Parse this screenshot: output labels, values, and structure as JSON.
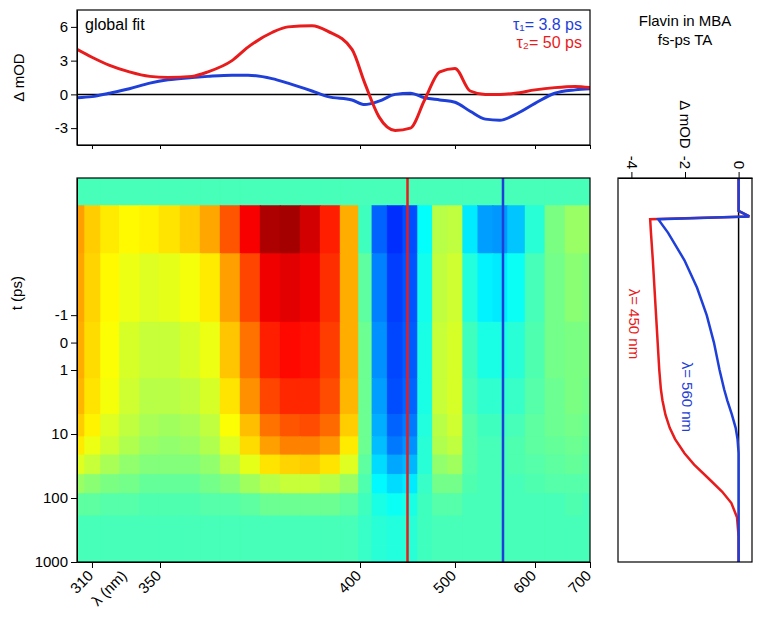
{
  "chart_data": [
    {
      "type": "line",
      "title": "global fit",
      "ylabel": "Δ mOD",
      "x": [
        300,
        310,
        320,
        332,
        344,
        352,
        358,
        362,
        368,
        372,
        378,
        382,
        388,
        392,
        398,
        405,
        420,
        437,
        453,
        468,
        484,
        500,
        519,
        538,
        556,
        575,
        600,
        636,
        673,
        700
      ],
      "xlim": [
        300,
        700
      ],
      "xticks": [
        310,
        350,
        400,
        500,
        600,
        700
      ],
      "ylim": [
        -4.5,
        7.5
      ],
      "yticks": [
        -3,
        0,
        3,
        6
      ],
      "tick_labels": "y",
      "legend": "upper right",
      "series": [
        {
          "name": "τ₁= 3.8 ps",
          "color": "#1f3fd9",
          "values": [
            -0.3,
            -0.2,
            0.1,
            0.5,
            1.0,
            1.3,
            1.5,
            1.6,
            1.7,
            1.7,
            1.4,
            1.0,
            0.3,
            -0.2,
            -0.5,
            -0.9,
            -0.6,
            0.0,
            0.1,
            -0.3,
            -0.5,
            -0.7,
            -1.5,
            -2.2,
            -2.3,
            -1.8,
            -0.8,
            0.1,
            0.4,
            0.5
          ]
        },
        {
          "name": "τ₂= 50 ps",
          "color": "#e81c1c",
          "values": [
            4.0,
            3.3,
            2.6,
            2.0,
            1.6,
            1.5,
            1.6,
            2.0,
            3.0,
            4.2,
            5.5,
            6.0,
            6.1,
            5.6,
            4.0,
            1.0,
            -2.0,
            -3.2,
            -3.0,
            -0.5,
            2.0,
            2.3,
            0.3,
            0.0,
            0.0,
            0.1,
            0.4,
            0.6,
            0.7,
            0.6
          ]
        }
      ]
    },
    {
      "type": "heatmap",
      "xlabel": "λ (nm)",
      "ylabel": "t (ps)",
      "x": [
        300,
        310,
        320,
        332,
        344,
        352,
        358,
        362,
        368,
        372,
        378,
        382,
        388,
        392,
        398,
        405,
        420,
        437,
        453,
        468,
        484,
        500,
        519,
        538,
        556,
        575,
        600,
        636,
        673,
        700
      ],
      "y": [
        -5.5,
        -4.5,
        -2,
        0.5,
        3,
        8,
        15,
        30,
        60,
        120,
        300,
        1000
      ],
      "xlim": [
        300,
        700
      ],
      "xticks": [
        310,
        350,
        400,
        500,
        600,
        700
      ],
      "ylim": [
        -6,
        1000
      ],
      "yticks": [
        -1,
        0,
        1,
        10,
        100,
        1000
      ],
      "zlim": [
        -6,
        7.5
      ],
      "values": [
        [
          0,
          0,
          0,
          0,
          0,
          0,
          0,
          0,
          0,
          0,
          0,
          0,
          0,
          0,
          0,
          0,
          0,
          0,
          0,
          0,
          0,
          0,
          0,
          0,
          0,
          0,
          0,
          0,
          0,
          0
        ],
        [
          3.7,
          3.1,
          2.7,
          2.5,
          2.6,
          2.8,
          3.1,
          3.6,
          4.7,
          5.9,
          6.9,
          7.0,
          6.4,
          5.4,
          3.5,
          -0.1,
          -3.0,
          -3.7,
          -3.3,
          -0.9,
          1.5,
          1.6,
          -1.2,
          -2.2,
          -2.3,
          -1.7,
          -0.4,
          0.7,
          1.1,
          1.1
        ],
        [
          3.6,
          3.0,
          2.5,
          2.2,
          2.0,
          2.1,
          2.3,
          2.7,
          3.7,
          4.9,
          6.0,
          6.2,
          6.0,
          5.2,
          3.5,
          0.3,
          -2.6,
          -3.5,
          -3.2,
          -0.7,
          1.6,
          1.8,
          -0.5,
          -1.1,
          -1.2,
          -0.8,
          0.0,
          0.6,
          0.9,
          0.8
        ],
        [
          3.5,
          2.9,
          2.4,
          1.9,
          1.7,
          1.7,
          1.9,
          2.2,
          3.2,
          4.3,
          5.4,
          5.7,
          5.6,
          5.0,
          3.5,
          0.5,
          -2.4,
          -3.4,
          -3.1,
          -0.6,
          1.7,
          1.9,
          -0.1,
          -0.6,
          -0.6,
          -0.4,
          0.1,
          0.6,
          0.7,
          0.7
        ],
        [
          3.4,
          2.8,
          2.3,
          1.8,
          1.5,
          1.5,
          1.6,
          1.9,
          2.8,
          3.9,
          4.9,
          5.3,
          5.3,
          4.8,
          3.4,
          0.5,
          -2.2,
          -3.3,
          -3.0,
          -0.6,
          1.7,
          1.9,
          0.0,
          -0.3,
          -0.3,
          -0.2,
          0.2,
          0.5,
          0.7,
          0.6
        ],
        [
          3.1,
          2.6,
          2.0,
          1.6,
          1.3,
          1.2,
          1.3,
          1.6,
          2.4,
          3.3,
          4.3,
          4.7,
          4.8,
          4.4,
          3.1,
          0.5,
          -2.0,
          -3.0,
          -2.7,
          -0.5,
          1.5,
          1.8,
          0.2,
          -0.1,
          -0.1,
          0.0,
          0.3,
          0.5,
          0.6,
          0.5
        ],
        [
          2.7,
          2.2,
          1.8,
          1.4,
          1.1,
          1.0,
          1.1,
          1.4,
          2.0,
          2.9,
          3.7,
          4.1,
          4.1,
          3.8,
          2.7,
          0.5,
          -1.8,
          -2.7,
          -2.4,
          -0.4,
          1.4,
          1.6,
          0.2,
          0.0,
          0.0,
          0.1,
          0.3,
          0.4,
          0.5,
          0.4
        ],
        [
          2.0,
          1.7,
          1.3,
          1.0,
          0.8,
          0.8,
          0.8,
          1.0,
          1.5,
          2.1,
          2.8,
          3.0,
          3.1,
          2.8,
          2.0,
          0.3,
          -1.4,
          -2.1,
          -1.9,
          -0.4,
          1.0,
          1.2,
          0.2,
          0.0,
          0.0,
          0.1,
          0.2,
          0.3,
          0.4,
          0.3
        ],
        [
          1.1,
          0.9,
          0.7,
          0.6,
          0.4,
          0.4,
          0.4,
          0.6,
          0.8,
          1.2,
          1.5,
          1.7,
          1.7,
          1.5,
          1.1,
          0.1,
          -1.0,
          -1.4,
          -1.2,
          -0.2,
          0.6,
          0.6,
          0.1,
          0.0,
          0.0,
          0.0,
          0.1,
          0.2,
          0.2,
          0.2
        ],
        [
          0.3,
          0.3,
          0.2,
          0.2,
          0.1,
          0.1,
          0.1,
          0.2,
          0.2,
          0.3,
          0.5,
          0.5,
          0.5,
          0.5,
          0.3,
          -0.1,
          -0.6,
          -0.8,
          -0.6,
          -0.1,
          0.2,
          0.2,
          0.0,
          0.0,
          0.0,
          0.0,
          0.0,
          0.0,
          0.1,
          0.0
        ],
        [
          0,
          0,
          0,
          0,
          0,
          0,
          0,
          0,
          0,
          0,
          0,
          0,
          0,
          0,
          0,
          -0.2,
          -0.4,
          -0.5,
          -0.4,
          -0.1,
          0,
          0,
          0,
          0,
          0,
          0,
          0,
          0,
          0,
          0
        ],
        [
          0,
          0,
          0,
          0,
          0,
          0,
          0,
          0,
          0,
          0,
          0,
          0,
          0,
          0,
          0,
          -0.2,
          -0.4,
          -0.5,
          -0.4,
          -0.1,
          0,
          0,
          0,
          0,
          0,
          0,
          0,
          0,
          0,
          0
        ]
      ],
      "cuts": [
        {
          "x": 450,
          "color": "#e81c1c"
        },
        {
          "x": 560,
          "color": "#1f3fd9"
        }
      ]
    },
    {
      "type": "line",
      "title": "Flavin in MBA fs-ps TA",
      "xlabel": "Δ mOD",
      "xlim": [
        -4.5,
        0.5
      ],
      "xticks": [
        -4,
        -2,
        0
      ],
      "ylim": [
        -6,
        1000
      ],
      "tick_labels": "x",
      "y": [
        -6,
        -5.5,
        -4.8,
        -4.6,
        -4.5,
        -4,
        -3,
        -2,
        -1,
        0,
        1,
        2,
        3,
        5,
        8,
        12,
        20,
        30,
        50,
        80,
        120,
        200,
        400,
        700,
        1000
      ],
      "series": [
        {
          "name": "λ= 450 nm",
          "color": "#e81c1c",
          "values": [
            0,
            0,
            0,
            0.4,
            -3.3,
            -3.27,
            -3.2,
            -3.14,
            -3.08,
            -3.02,
            -2.96,
            -2.9,
            -2.84,
            -2.73,
            -2.57,
            -2.37,
            -2.02,
            -1.66,
            -1.11,
            -0.61,
            -0.27,
            -0.06,
            0,
            0,
            0
          ]
        },
        {
          "name": "λ= 560 nm",
          "color": "#1f3fd9",
          "values": [
            0,
            0,
            0,
            0.4,
            -3.0,
            -2.63,
            -2.02,
            -1.55,
            -1.19,
            -0.92,
            -0.71,
            -0.54,
            -0.42,
            -0.25,
            -0.11,
            -0.04,
            0,
            0,
            0,
            0,
            0,
            0,
            0,
            0,
            0
          ]
        }
      ]
    }
  ]
}
